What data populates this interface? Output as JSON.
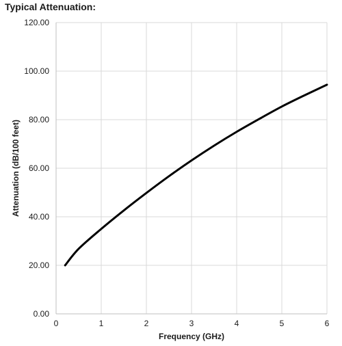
{
  "chart_data": {
    "type": "line",
    "title": "Typical Attenuation:",
    "xlabel": "Frequency (GHz)",
    "ylabel": "Attenuation (dB/100 feet)",
    "xlim": [
      0,
      6
    ],
    "ylim": [
      0,
      120
    ],
    "xticks": [
      "0",
      "1",
      "2",
      "3",
      "4",
      "5",
      "6"
    ],
    "yticks": [
      "0.00",
      "20.00",
      "40.00",
      "60.00",
      "80.00",
      "100.00",
      "120.00"
    ],
    "grid": true,
    "legend": "none",
    "series": [
      {
        "color": "#000000",
        "x": [
          0.2,
          0.5,
          1.0,
          1.5,
          2.0,
          2.5,
          3.0,
          3.5,
          4.0,
          4.5,
          5.0,
          5.5,
          6.0
        ],
        "y": [
          20.0,
          26.8,
          35.0,
          42.6,
          49.8,
          56.7,
          63.2,
          69.3,
          75.0,
          80.3,
          85.4,
          90.0,
          94.4
        ]
      }
    ]
  }
}
